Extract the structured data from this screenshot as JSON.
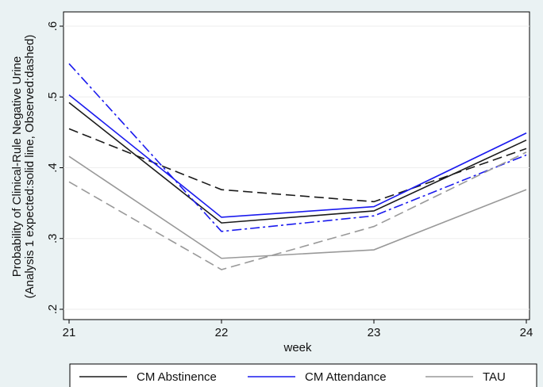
{
  "chart_data": {
    "type": "line",
    "y_label_lines": [
      "Probability of Clinical-Rule Negative Urine",
      "(Analysis 1 expected:solid line, Observed:dashed)"
    ],
    "x_label": "week",
    "x": [
      21,
      22,
      23,
      24
    ],
    "xlim": [
      21,
      24
    ],
    "xticks": [
      21,
      22,
      23,
      24
    ],
    "ylim": [
      0.2,
      0.6
    ],
    "yticks": [
      {
        "value": 0.2,
        "label": ".2"
      },
      {
        "value": 0.3,
        "label": ".3"
      },
      {
        "value": 0.4,
        "label": ".4"
      },
      {
        "value": 0.5,
        "label": ".5"
      },
      {
        "value": 0.6,
        "label": ".6"
      }
    ],
    "grid": true,
    "series": [
      {
        "name": "CM Abstinence",
        "color": "#1a1a1a",
        "values": [
          0.492,
          0.322,
          0.339,
          0.439
        ],
        "observed": [
          0.455,
          0.369,
          0.352,
          0.427
        ],
        "observed_dash": "12 6"
      },
      {
        "name": "CM Attendance",
        "color": "#1a1aee",
        "values": [
          0.503,
          0.33,
          0.345,
          0.449
        ],
        "observed": [
          0.547,
          0.31,
          0.332,
          0.418
        ],
        "observed_dash": "12 4 3 4"
      },
      {
        "name": "TAU",
        "color": "#999999",
        "values": [
          0.416,
          0.272,
          0.284,
          0.369
        ],
        "observed": [
          0.38,
          0.256,
          0.317,
          0.422
        ],
        "observed_dash": "12 6"
      }
    ]
  }
}
